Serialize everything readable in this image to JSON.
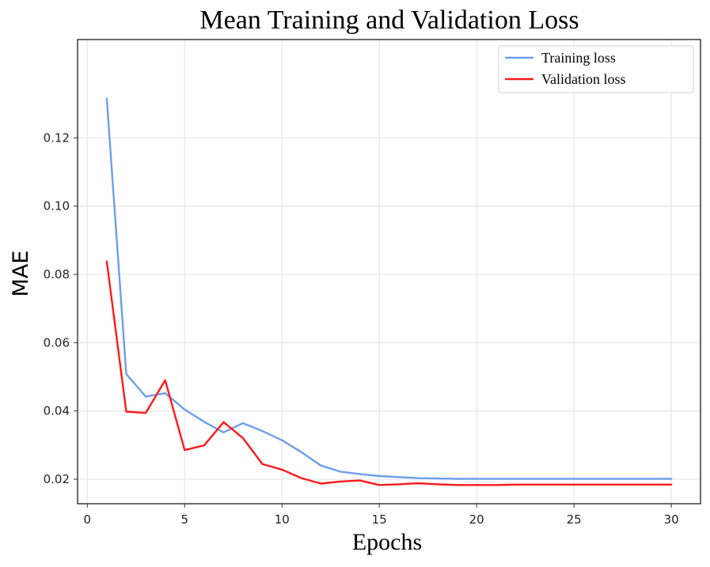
{
  "chart_data": {
    "type": "line",
    "title": "Mean Training and Validation Loss",
    "xlabel": "Epochs",
    "ylabel": "MAE",
    "xlim": [
      -0.5,
      31.5
    ],
    "ylim": [
      0.0128,
      0.1488
    ],
    "grid": true,
    "legend_position": "top-right",
    "x_ticks": [
      0,
      5,
      10,
      15,
      20,
      25,
      30
    ],
    "x_tick_labels": [
      "0",
      "5",
      "10",
      "15",
      "20",
      "25",
      "30"
    ],
    "y_ticks": [
      0.02,
      0.04,
      0.06,
      0.08,
      0.1,
      0.12
    ],
    "y_tick_labels": [
      "0.02",
      "0.04",
      "0.06",
      "0.08",
      "0.10",
      "0.12"
    ],
    "x": [
      1,
      2,
      3,
      4,
      5,
      6,
      7,
      8,
      9,
      10,
      11,
      12,
      13,
      14,
      15,
      16,
      17,
      18,
      19,
      20,
      21,
      22,
      23,
      24,
      25,
      26,
      27,
      28,
      29,
      30
    ],
    "series": [
      {
        "name": "Training loss",
        "color": "#6d9eeb",
        "values": [
          0.1315,
          0.0508,
          0.0442,
          0.0452,
          0.0404,
          0.0368,
          0.0337,
          0.0364,
          0.0341,
          0.0314,
          0.0279,
          0.024,
          0.0222,
          0.0215,
          0.0209,
          0.0206,
          0.0203,
          0.0202,
          0.0201,
          0.0201,
          0.0201,
          0.0201,
          0.0201,
          0.0201,
          0.0201,
          0.0201,
          0.0201,
          0.0201,
          0.0201,
          0.0201
        ]
      },
      {
        "name": "Validation loss",
        "color": "#ff1a1a",
        "values": [
          0.0838,
          0.0398,
          0.0394,
          0.049,
          0.0285,
          0.0299,
          0.0367,
          0.032,
          0.0244,
          0.0228,
          0.0203,
          0.0187,
          0.0193,
          0.0196,
          0.0183,
          0.0185,
          0.0188,
          0.0185,
          0.0183,
          0.0183,
          0.0183,
          0.0184,
          0.0184,
          0.0184,
          0.0184,
          0.0184,
          0.0184,
          0.0184,
          0.0184,
          0.0184
        ]
      }
    ]
  }
}
